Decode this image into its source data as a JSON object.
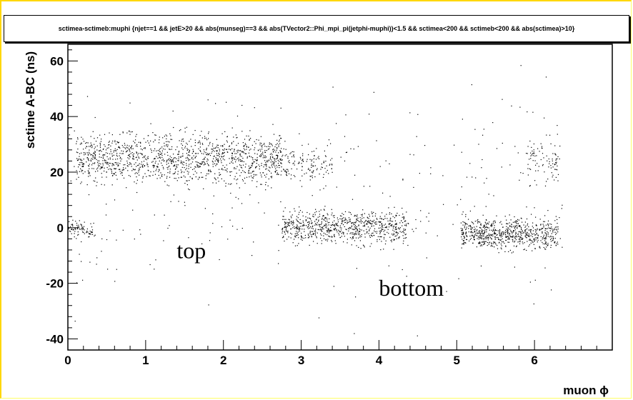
{
  "title": "sctimea-sctimeb:muphi {njet==1 && jetE>20 && abs(munseg)==3 && abs(TVector2::Phi_mpi_pi(jetphi-muphi))<1.5 && sctimea<200 && sctimeb<200 && abs(sctimea)>10}",
  "colors": {
    "frame": "#ffd700",
    "points": "#000000"
  },
  "chart_data": {
    "type": "scatter",
    "title": "sctimea-sctimeb:muphi {njet==1 && jetE>20 && abs(munseg)==3 && abs(TVector2::Phi_mpi_pi(jetphi-muphi))<1.5 && sctimea<200 && sctimeb<200 && abs(sctimea)>10}",
    "xlabel": "muon ϕ",
    "ylabel": "sctime A-BC (ns)",
    "xlim": [
      0,
      7
    ],
    "ylim": [
      -44,
      66
    ],
    "xticks": [
      "0",
      "1",
      "2",
      "3",
      "4",
      "5",
      "6"
    ],
    "yticks": [
      "-40",
      "-20",
      "0",
      "20",
      "40",
      "60"
    ],
    "grid": false,
    "annotations": [
      {
        "text": "top",
        "x": 1.4,
        "y": -11
      },
      {
        "text": "bottom",
        "x": 4.0,
        "y": -24.5
      }
    ],
    "clusters": [
      {
        "x": [
          0.1,
          2.8
        ],
        "y": [
          12,
          38
        ],
        "n": 1300
      },
      {
        "x": [
          2.8,
          3.4
        ],
        "y": [
          14,
          32
        ],
        "n": 120
      },
      {
        "x": [
          5.9,
          6.3
        ],
        "y": [
          12,
          36
        ],
        "n": 90
      },
      {
        "x": [
          0.0,
          0.35
        ],
        "y": [
          -5,
          4
        ],
        "n": 80
      },
      {
        "x": [
          2.75,
          4.35
        ],
        "y": [
          -8,
          9
        ],
        "n": 750
      },
      {
        "x": [
          5.05,
          6.3
        ],
        "y": [
          -10,
          6
        ],
        "n": 700
      },
      {
        "x": [
          0.0,
          6.4
        ],
        "y": [
          -42,
          65
        ],
        "n": 320
      }
    ]
  }
}
